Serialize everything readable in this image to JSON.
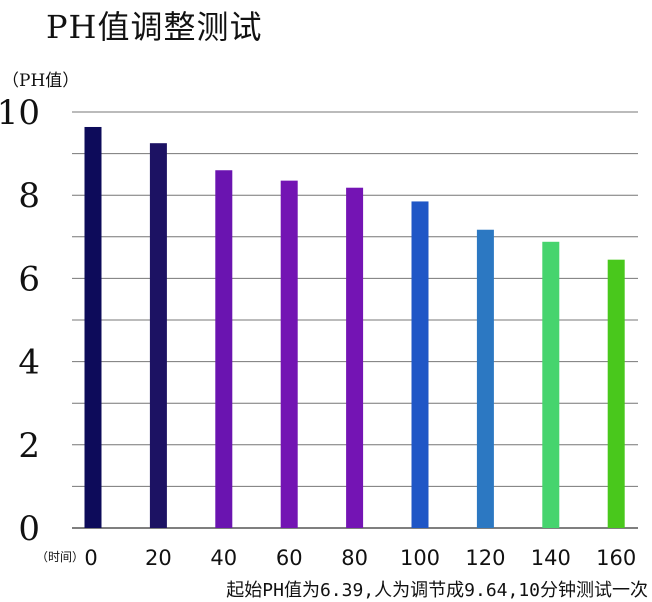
{
  "chart_data": {
    "type": "bar",
    "title": "PH值调整测试",
    "ylabel": "（PH值）",
    "xlabel": "（时间）",
    "note": "起始PH值为6.39,人为调节成9.64,10分钟测试一次",
    "categories": [
      "0",
      "20",
      "40",
      "60",
      "80",
      "100",
      "120",
      "140",
      "160"
    ],
    "values": [
      9.64,
      9.25,
      8.6,
      8.35,
      8.18,
      7.85,
      7.17,
      6.88,
      6.45
    ],
    "ylim": [
      0,
      10
    ],
    "yticks": [
      "0",
      "2",
      "4",
      "6",
      "8",
      "10"
    ],
    "grid": true,
    "bar_colors": [
      "#0d0b5a",
      "#1c1263",
      "#6a14b0",
      "#7314b3",
      "#7414b4",
      "#1f56c6",
      "#2c78c2",
      "#46d46e",
      "#49c81c"
    ]
  }
}
